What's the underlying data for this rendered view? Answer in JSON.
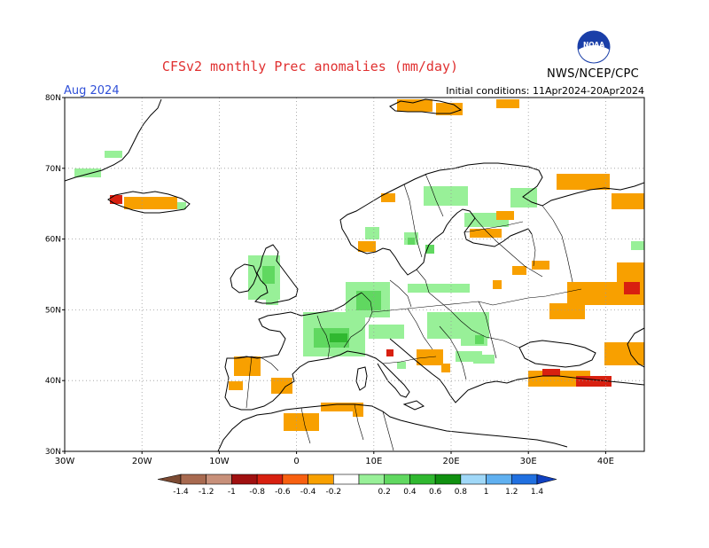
{
  "header": {
    "title": "CFSv2 monthly Prec anomalies (mm/day)",
    "month": "Aug 2024",
    "initial_conditions": "Initial conditions: 11Apr2024-20Apr2024",
    "agency": "NWS/NCEP/CPC",
    "logo_text": "NOAA"
  },
  "map": {
    "region": "Europe",
    "lon_range": [
      -30,
      45
    ],
    "lat_range": [
      30,
      80
    ],
    "lon_ticks": [
      "30W",
      "20W",
      "10W",
      "0",
      "10E",
      "20E",
      "30E",
      "40E"
    ],
    "lat_ticks": [
      "80N",
      "70N",
      "60N",
      "50N",
      "40N",
      "30N"
    ],
    "gridlines": true
  },
  "legend": {
    "labels": [
      "-1.4",
      "-1.2",
      "-1",
      "-0.8",
      "-0.6",
      "-0.4",
      "-0.2",
      "0.2",
      "0.4",
      "0.6",
      "0.8",
      "1",
      "1.2",
      "1.4"
    ],
    "colors": [
      "#7b4a32",
      "#a86a50",
      "#c8907a",
      "#a01010",
      "#d82010",
      "#f86010",
      "#f8a000",
      "#ffffff",
      "#98f098",
      "#60d860",
      "#30b830",
      "#109010",
      "#a0d8f8",
      "#60b0f0",
      "#2070e0",
      "#1040c0"
    ]
  }
}
